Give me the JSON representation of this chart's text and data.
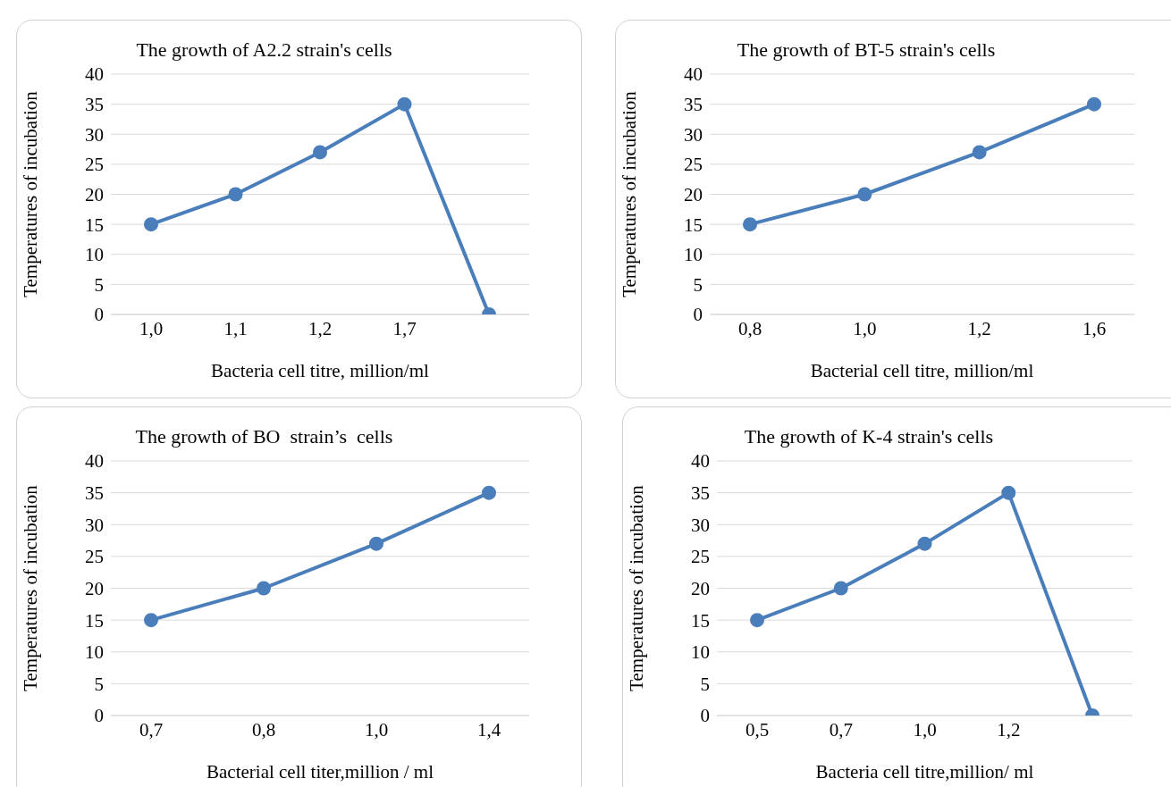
{
  "chart_data": [
    {
      "type": "line",
      "title": "The growth of A2.2 strain's cells",
      "xlabel": "Bacteria cell titre, million/ml",
      "ylabel": "Temperatures  of incubation",
      "categories": [
        "1,0",
        "1,1",
        "1,2",
        "1,7",
        null
      ],
      "values": [
        15,
        20,
        27,
        35,
        0
      ],
      "color": "#4a7ebb",
      "ylim": [
        0,
        40
      ],
      "yticks": [
        0,
        5,
        10,
        15,
        20,
        25,
        30,
        35,
        40
      ],
      "grid": "y",
      "marker": "circle",
      "line_style": "solid"
    },
    {
      "type": "line",
      "title": "The growth of BT-5 strain's cells",
      "xlabel": "Bacterial cell titre, million/ml",
      "ylabel": "Temperatures of incubation",
      "categories": [
        "0,8",
        "1,0",
        "1,2",
        "1,6"
      ],
      "values": [
        15,
        20,
        27,
        35
      ],
      "color": "#4a7ebb",
      "ylim": [
        0,
        40
      ],
      "yticks": [
        0,
        5,
        10,
        15,
        20,
        25,
        30,
        35,
        40
      ],
      "grid": "y",
      "marker": "circle",
      "line_style": "solid"
    },
    {
      "type": "line",
      "title": "The growth of BO  strain’s  cells",
      "xlabel": "Bacterial cell titer,million / ml",
      "ylabel": "Temperatures  of incubation",
      "categories": [
        "0,7",
        "0,8",
        "1,0",
        "1,4"
      ],
      "values": [
        15,
        20,
        27,
        35
      ],
      "color": "#4a7ebb",
      "ylim": [
        0,
        40
      ],
      "yticks": [
        0,
        5,
        10,
        15,
        20,
        25,
        30,
        35,
        40
      ],
      "grid": "y",
      "marker": "circle",
      "line_style": "solid"
    },
    {
      "type": "line",
      "title": "The growth of K-4 strain's cells",
      "xlabel": "Bacteria cell titre,million/ ml",
      "ylabel": "Temperatures of incubation",
      "categories": [
        "0,5",
        "0,7",
        "1,0",
        "1,2",
        null
      ],
      "values": [
        15,
        20,
        27,
        35,
        0
      ],
      "color": "#4a7ebb",
      "ylim": [
        0,
        40
      ],
      "yticks": [
        0,
        5,
        10,
        15,
        20,
        25,
        30,
        35,
        40
      ],
      "grid": "y",
      "marker": "circle",
      "line_style": "solid"
    }
  ]
}
